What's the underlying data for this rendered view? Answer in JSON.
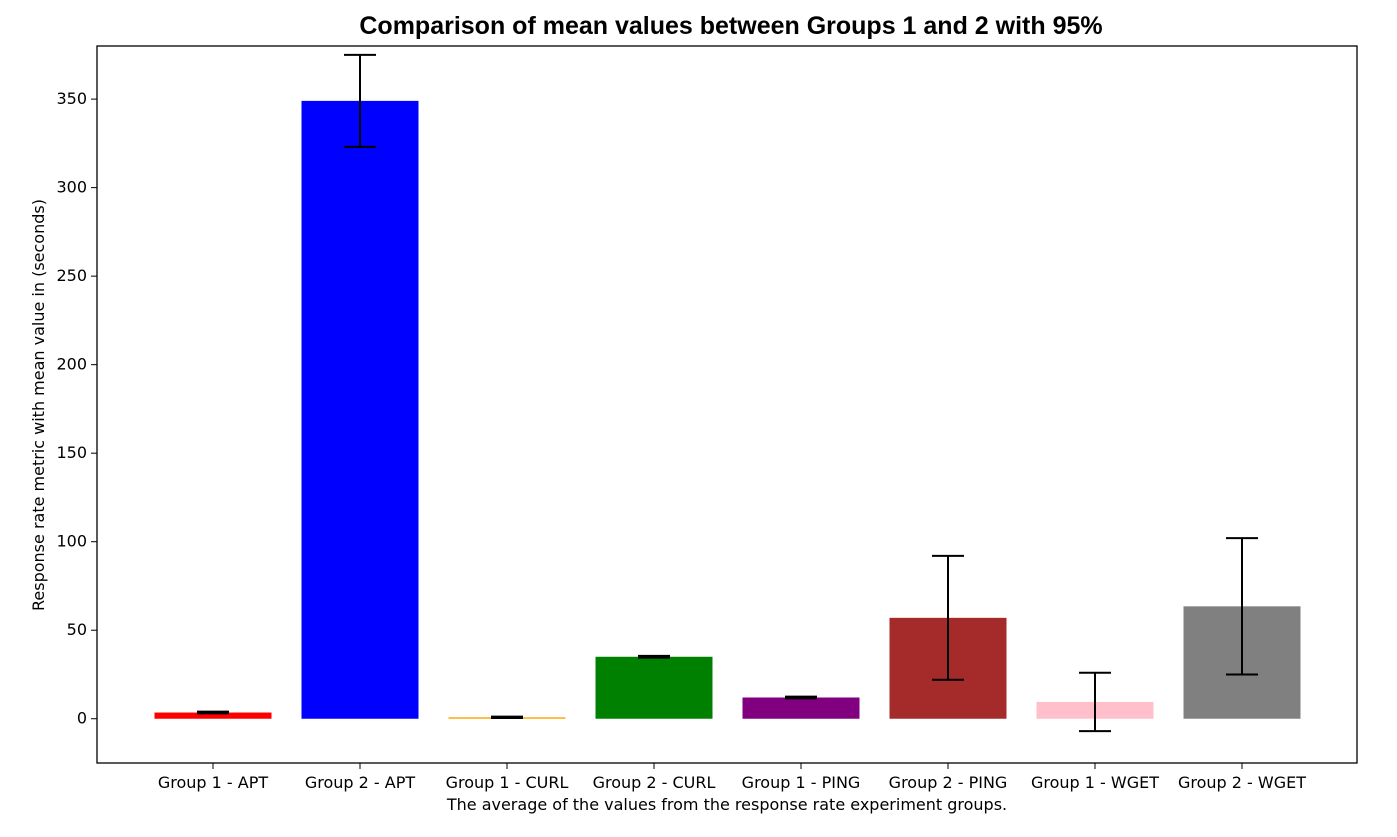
{
  "chart_data": {
    "type": "bar",
    "title": "Comparison of mean values between Groups 1 and 2 with 95%",
    "xlabel": "The average of the values from the response rate experiment groups.",
    "ylabel": "Response rate metric with mean value in (seconds)",
    "ylim": [
      -25,
      380
    ],
    "yticks": [
      0,
      50,
      100,
      150,
      200,
      250,
      300,
      350
    ],
    "grid": false,
    "categories": [
      "Group 1 - APT",
      "Group 2 - APT",
      "Group 1 - CURL",
      "Group 2 - CURL",
      "Group 1 - PING",
      "Group 2 - PING",
      "Group 1 - WGET",
      "Group 2 - WGET"
    ],
    "values": [
      3.5,
      349,
      0.8,
      35,
      12,
      57,
      9.5,
      63.5
    ],
    "error_low": [
      3.0,
      323,
      0.4,
      34.5,
      11.5,
      22,
      -7,
      25
    ],
    "error_high": [
      4.0,
      375,
      1.2,
      35.5,
      12.5,
      92,
      26,
      102
    ],
    "colors": [
      "#ff0000",
      "#0000ff",
      "#ffa500",
      "#008000",
      "#800080",
      "#a52a2a",
      "#ffc0cb",
      "#808080"
    ]
  }
}
